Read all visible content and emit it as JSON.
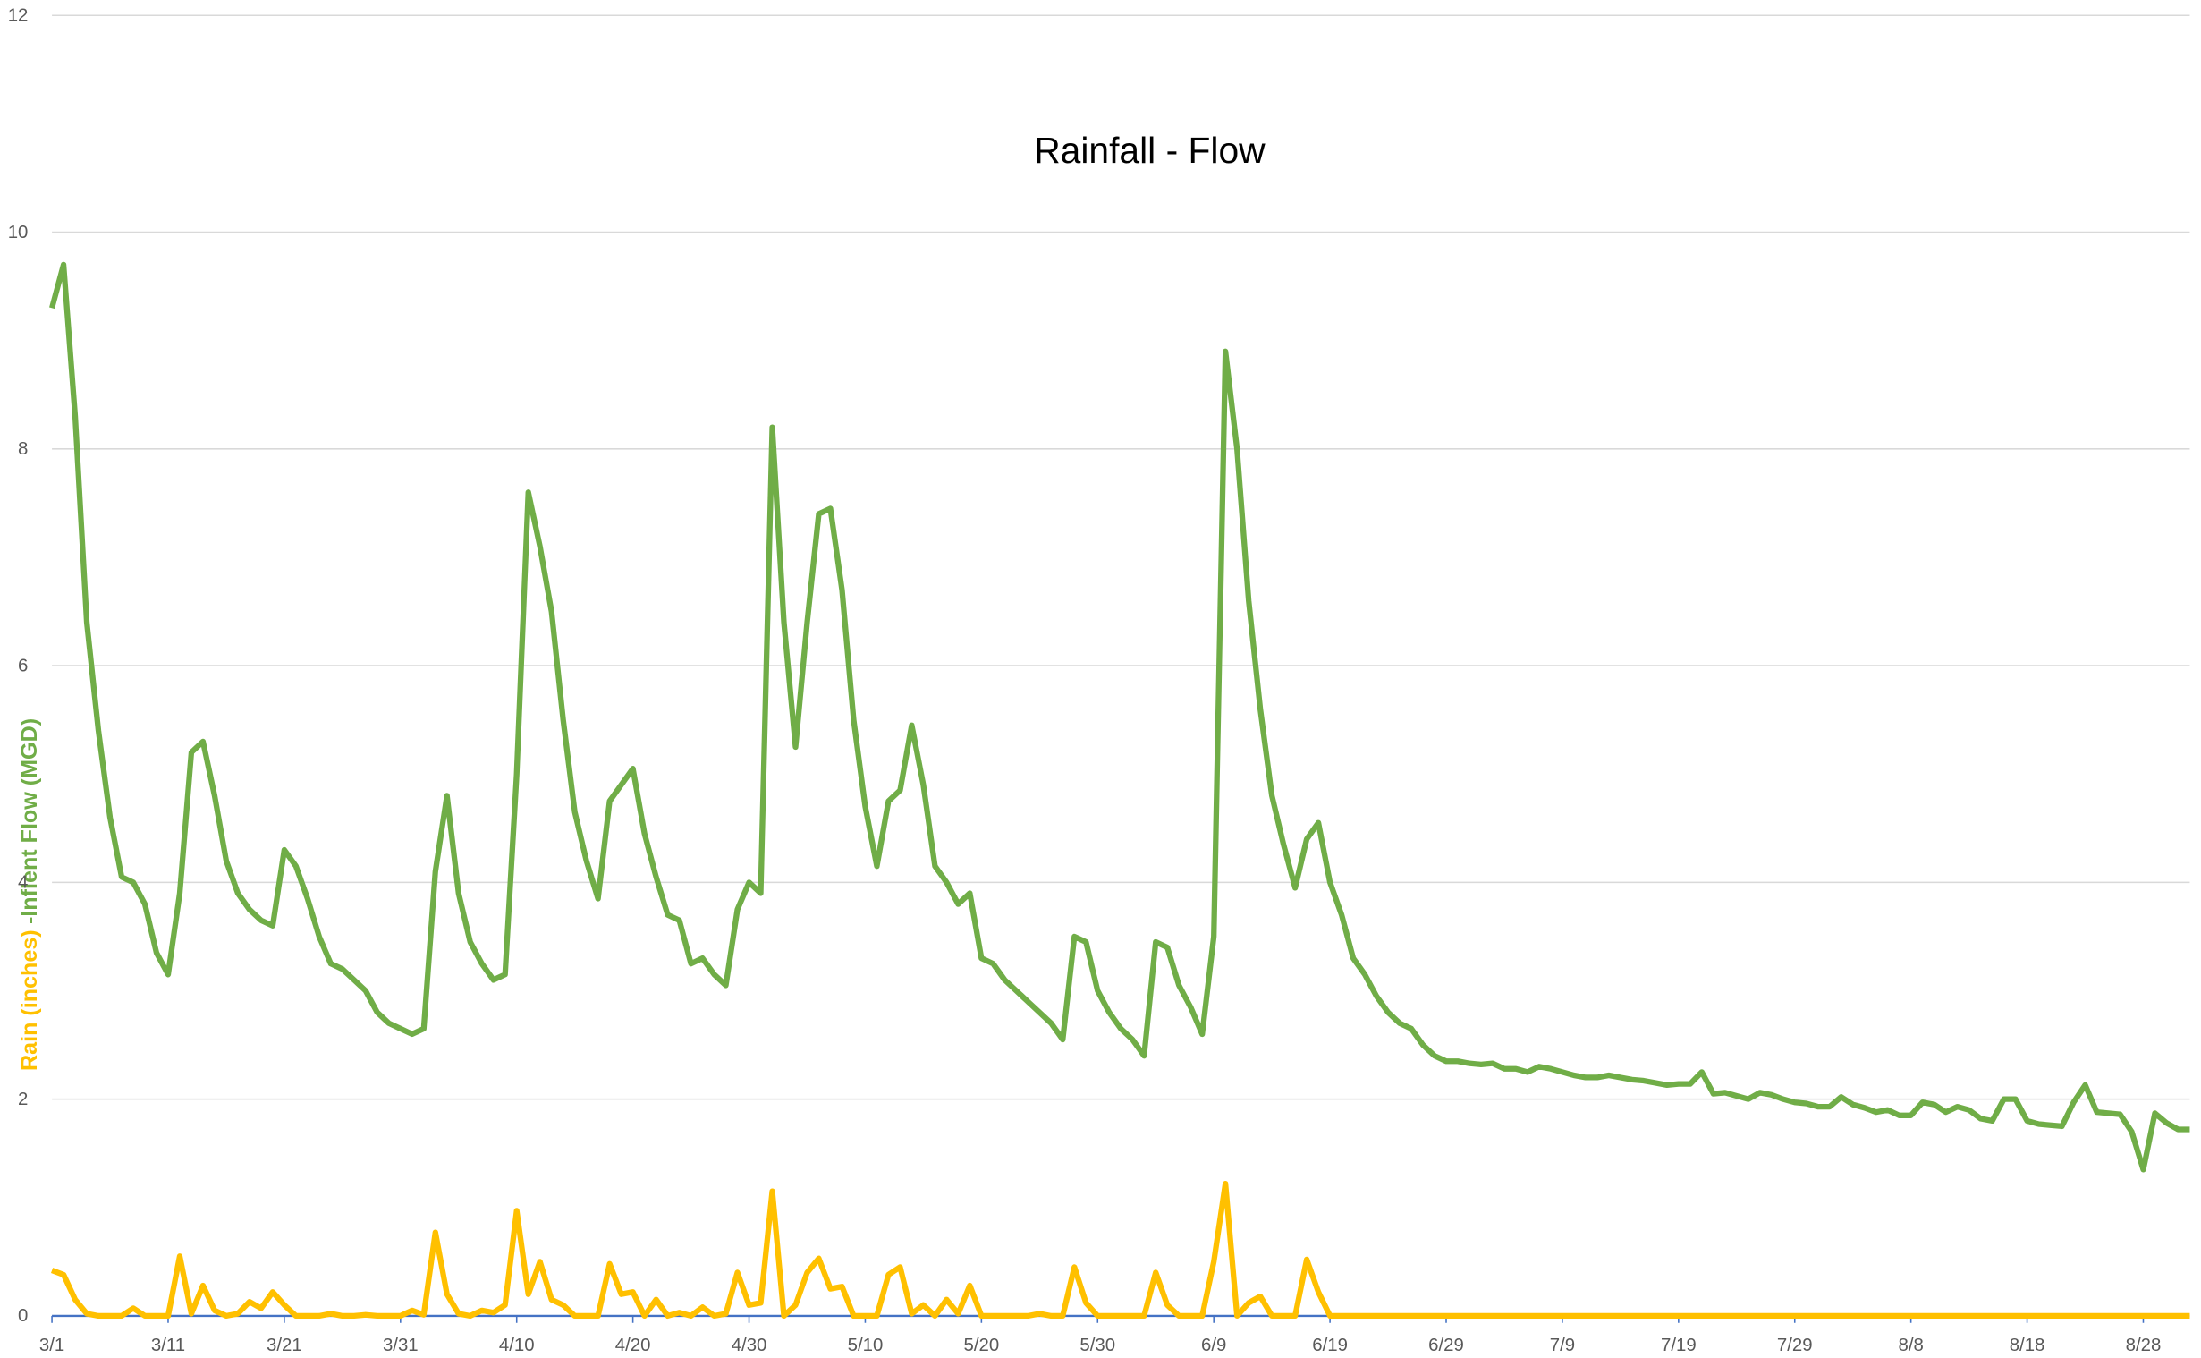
{
  "chart_data": {
    "type": "line",
    "title": "Rainfall - Flow",
    "ylabel": [
      "Rain (inches)",
      "-Inflent Flow (MGD)"
    ],
    "ylim": [
      0,
      12
    ],
    "yticks": [
      0,
      2,
      4,
      6,
      8,
      10,
      12
    ],
    "grid": true,
    "categories": [
      "3/1",
      null,
      null,
      null,
      null,
      null,
      null,
      null,
      null,
      null,
      "3/11",
      null,
      null,
      null,
      null,
      null,
      null,
      null,
      null,
      null,
      "3/21",
      null,
      null,
      null,
      null,
      null,
      null,
      null,
      null,
      null,
      "3/31",
      null,
      null,
      null,
      null,
      null,
      null,
      null,
      null,
      null,
      "4/10",
      null,
      null,
      null,
      null,
      null,
      null,
      null,
      null,
      null,
      "4/20",
      null,
      null,
      null,
      null,
      null,
      null,
      null,
      null,
      null,
      "4/30",
      null,
      null,
      null,
      null,
      null,
      null,
      null,
      null,
      null,
      "5/10",
      null,
      null,
      null,
      null,
      null,
      null,
      null,
      null,
      null,
      "5/20",
      null,
      null,
      null,
      null,
      null,
      null,
      null,
      null,
      null,
      "5/30",
      null,
      null,
      null,
      null,
      null,
      null,
      null,
      null,
      null,
      "6/9",
      null,
      null,
      null,
      null,
      null,
      null,
      null,
      null,
      null,
      "6/19",
      null,
      null,
      null,
      null,
      null,
      null,
      null,
      null,
      null,
      "6/29",
      null,
      null,
      null,
      null,
      null,
      null,
      null,
      null,
      null,
      "7/9",
      null,
      null,
      null,
      null,
      null,
      null,
      null,
      null,
      null,
      "7/19",
      null,
      null,
      null,
      null,
      null,
      null,
      null,
      null,
      null,
      "7/29",
      null,
      null,
      null,
      null,
      null,
      null,
      null,
      null,
      null,
      "8/8",
      null,
      null,
      null,
      null,
      null,
      null,
      null,
      null,
      null,
      "8/18",
      null,
      null,
      null,
      null,
      null,
      null,
      null,
      null,
      null,
      "8/28",
      null,
      null,
      null,
      null
    ],
    "series": [
      {
        "name": "Inflent Flow (MGD)",
        "color": "#70ad47",
        "values": [
          9.3,
          9.7,
          8.3,
          6.4,
          5.4,
          4.6,
          4.05,
          4.0,
          3.8,
          3.35,
          3.15,
          3.9,
          5.2,
          5.3,
          4.8,
          4.2,
          3.9,
          3.75,
          3.65,
          3.6,
          4.3,
          4.15,
          3.85,
          3.5,
          3.25,
          3.2,
          3.1,
          3.0,
          2.8,
          2.7,
          2.65,
          2.6,
          2.65,
          4.1,
          4.8,
          3.9,
          3.45,
          3.25,
          3.1,
          3.15,
          5.0,
          7.6,
          7.1,
          6.5,
          5.5,
          4.65,
          4.2,
          3.85,
          4.75,
          4.9,
          5.05,
          4.45,
          4.05,
          3.7,
          3.65,
          3.25,
          3.3,
          3.15,
          3.05,
          3.75,
          4.0,
          3.9,
          8.2,
          6.4,
          5.25,
          6.4,
          7.4,
          7.45,
          6.7,
          5.5,
          4.7,
          4.15,
          4.75,
          4.85,
          5.45,
          4.9,
          4.15,
          4.0,
          3.8,
          3.9,
          3.3,
          3.25,
          3.1,
          3.0,
          2.9,
          2.8,
          2.7,
          2.55,
          3.5,
          3.45,
          3.0,
          2.8,
          2.65,
          2.55,
          2.4,
          3.45,
          3.4,
          3.05,
          2.85,
          2.6,
          3.5,
          8.9,
          8.0,
          6.6,
          5.6,
          4.8,
          4.35,
          3.95,
          4.4,
          4.55,
          4.0,
          3.7,
          3.3,
          3.15,
          2.95,
          2.8,
          2.7,
          2.65,
          2.5,
          2.4,
          2.35,
          2.35,
          2.33,
          2.32,
          2.33,
          2.28,
          2.28,
          2.25,
          2.3,
          2.28,
          2.25,
          2.22,
          2.2,
          2.2,
          2.22,
          2.2,
          2.18,
          2.17,
          2.15,
          2.13,
          2.14,
          2.14,
          2.25,
          2.05,
          2.06,
          2.03,
          2.0,
          2.06,
          2.04,
          2.0,
          1.97,
          1.96,
          1.93,
          1.93,
          2.02,
          1.95,
          1.92,
          1.88,
          1.9,
          1.85,
          1.85,
          1.97,
          1.95,
          1.88,
          1.93,
          1.9,
          1.82,
          1.8,
          2.0,
          2.0,
          1.8,
          1.77,
          1.76,
          1.75,
          1.97,
          2.13,
          1.88,
          1.87,
          1.86,
          1.7,
          1.35,
          1.87,
          1.78,
          1.72,
          1.72
        ]
      },
      {
        "name": "Rain (inches)",
        "color": "#ffc000",
        "values": [
          0.42,
          0.38,
          0.15,
          0.02,
          0,
          0,
          0,
          0.07,
          0,
          0,
          0,
          0.55,
          0.02,
          0.28,
          0.05,
          0,
          0.02,
          0.13,
          0.07,
          0.22,
          0.1,
          0,
          0,
          0,
          0.02,
          0,
          0,
          0.01,
          0,
          0,
          0,
          0.05,
          0.01,
          0.77,
          0.2,
          0.02,
          0,
          0.05,
          0.03,
          0.1,
          0.97,
          0.2,
          0.5,
          0.15,
          0.1,
          0,
          0,
          0,
          0.48,
          0.2,
          0.22,
          0,
          0.15,
          0,
          0.03,
          0,
          0.08,
          0,
          0.02,
          0.4,
          0.1,
          0.12,
          1.15,
          0,
          0.1,
          0.4,
          0.53,
          0.25,
          0.27,
          0,
          0,
          0,
          0.38,
          0.45,
          0.02,
          0.1,
          0,
          0.15,
          0.02,
          0.28,
          0,
          0,
          0,
          0,
          0,
          0.02,
          0,
          0,
          0.45,
          0.12,
          0,
          0,
          0,
          0,
          0,
          0.4,
          0.1,
          0,
          0,
          0,
          0.5,
          1.22,
          0,
          0.12,
          0.18,
          0,
          0,
          0,
          0.52,
          0.22,
          0,
          0,
          0,
          0,
          0,
          0,
          0,
          0,
          0,
          0,
          0,
          0,
          0,
          0,
          0,
          0,
          0,
          0,
          0,
          0,
          0,
          0,
          0,
          0,
          0,
          0,
          0,
          0,
          0,
          0,
          0,
          0,
          0,
          0,
          0,
          0,
          0,
          0,
          0,
          0,
          0,
          0,
          0,
          0,
          0,
          0,
          0,
          0,
          0,
          0,
          0,
          0,
          0,
          0,
          0,
          0,
          0,
          0,
          0,
          0,
          0,
          0,
          0,
          0,
          0,
          0,
          0,
          0,
          0,
          0,
          0,
          0,
          0,
          0,
          0
        ]
      }
    ]
  }
}
